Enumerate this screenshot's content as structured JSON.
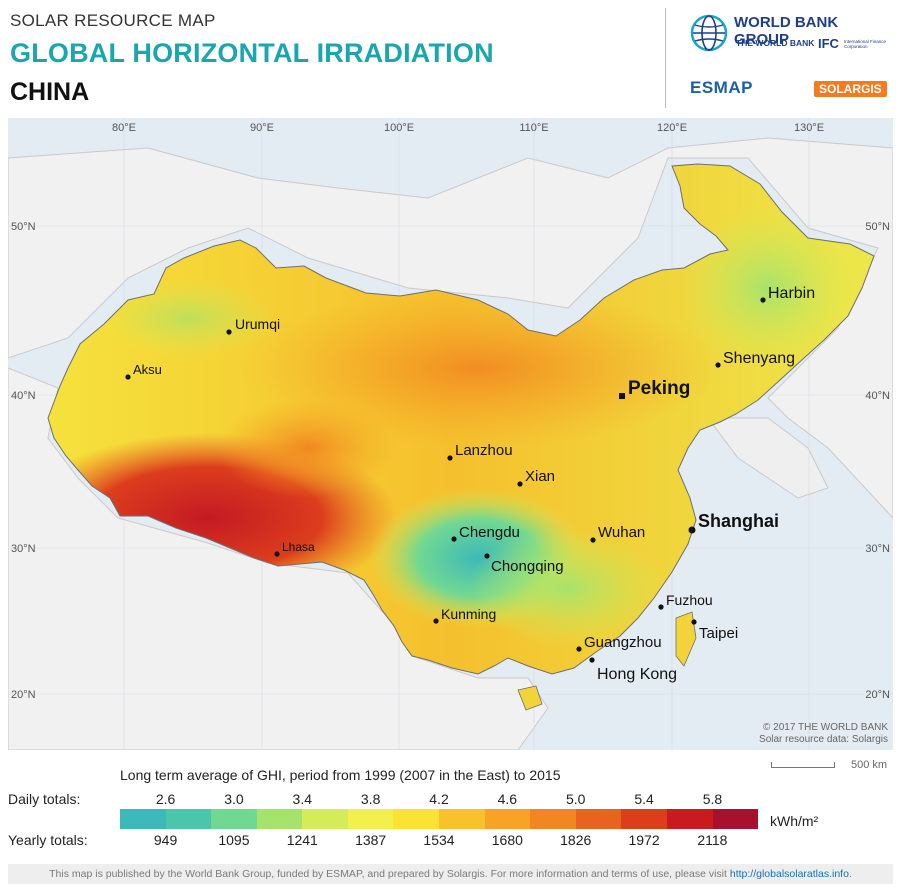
{
  "header": {
    "kicker": "SOLAR RESOURCE MAP",
    "title": "GLOBAL HORIZONTAL IRRADIATION",
    "country": "CHINA"
  },
  "logos": {
    "wbg": "WORLD BANK GROUP",
    "wb": "THE WORLD BANK",
    "ifc": "IFC",
    "ifc_sub": "International Finance Corporation",
    "esmap": "ESMAP",
    "solargis": "SOLARGIS"
  },
  "map": {
    "lon_labels": [
      "80°E",
      "90°E",
      "100°E",
      "110°E",
      "120°E",
      "130°E"
    ],
    "lat_labels": [
      "50°N",
      "40°N",
      "30°N",
      "20°N"
    ],
    "cities": [
      {
        "name": "Urumqi"
      },
      {
        "name": "Aksu"
      },
      {
        "name": "Lhasa"
      },
      {
        "name": "Lanzhou"
      },
      {
        "name": "Xian"
      },
      {
        "name": "Chengdu"
      },
      {
        "name": "Chongqing"
      },
      {
        "name": "Kunming"
      },
      {
        "name": "Wuhan"
      },
      {
        "name": "Shanghai"
      },
      {
        "name": "Peking"
      },
      {
        "name": "Shenyang"
      },
      {
        "name": "Harbin"
      },
      {
        "name": "Fuzhou"
      },
      {
        "name": "Taipei"
      },
      {
        "name": "Guangzhou"
      },
      {
        "name": "Hong Kong"
      }
    ],
    "copyright": "© 2017 THE WORLD BANK",
    "source": "Solar resource data: Solargis"
  },
  "scale": {
    "label": "500 km"
  },
  "legend": {
    "caption": "Long term average of GHI, period from 1999 (2007 in the East) to 2015",
    "daily_label": "Daily totals:",
    "yearly_label": "Yearly totals:",
    "daily_ticks": [
      "2.6",
      "3.0",
      "3.4",
      "3.8",
      "4.2",
      "4.6",
      "5.0",
      "5.4",
      "5.8"
    ],
    "yearly_ticks": [
      "949",
      "1095",
      "1241",
      "1387",
      "1534",
      "1680",
      "1826",
      "1972",
      "2118"
    ],
    "unit": "kWh/m²",
    "colors": [
      "#3db9b9",
      "#4cc5aa",
      "#72d891",
      "#a6e36c",
      "#d3ec58",
      "#f2f04a",
      "#fbe334",
      "#fac22a",
      "#f7a324",
      "#f18721",
      "#e8631f",
      "#dc3d1d",
      "#c81a1f",
      "#a8102d"
    ]
  },
  "footer": {
    "text": "This map is published by the World Bank Group, funded by ESMAP, and prepared by Solargis. For more information and terms of use, please visit",
    "link": "http://globalsolaratlas.info",
    "link_suffix": "."
  }
}
